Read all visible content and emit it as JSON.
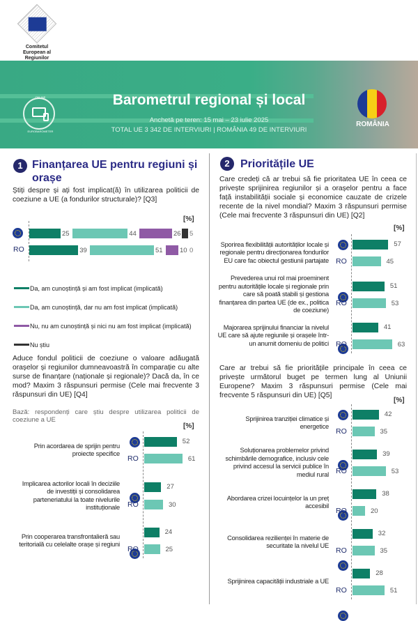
{
  "header": {
    "org_name": "Comitetul European al Regiunilor",
    "badge_top": "ONLINE",
    "badge_bottom": "EUROBAROMETER",
    "title": "Barometrul regional și local",
    "subtitle1": "Anchetă pe teren: 15 mai – 23 iulie 2025",
    "subtitle2": "TOTAL UE 3 342 DE INTERVIURI | ROMÂNIA 49 DE INTERVIURI",
    "country": "ROMÂNIA",
    "flag_colors": [
      "#1d3b95",
      "#f6cf16",
      "#d8202a"
    ]
  },
  "colors": {
    "eu": "#0e7f66",
    "ro": "#6cc7b4",
    "purple": "#8f5aa5",
    "dark": "#333333",
    "title": "#2b2b86"
  },
  "section1": {
    "number": "1",
    "title": "Finanțarea UE pentru regiuni și orașe",
    "q3": {
      "question": "Știți despre și ați fost implicat(ă) în utilizarea politicii de coeziune a UE (a fondurilor structurale)? [Q3]",
      "unit": "[%]",
      "rows": [
        {
          "label": "",
          "icon": "eu-flag-icon",
          "values": [
            25,
            44,
            26,
            5
          ]
        },
        {
          "label": "RO",
          "values": [
            39,
            51,
            10,
            0
          ]
        }
      ],
      "legend": [
        "Da, am cunoștință și am fost implicat (implicată)",
        "Da, am cunoștință, dar nu am fost implicat (implicată)",
        "Nu, nu am cunoștință și nici nu am fost implicat (implicată)",
        "Nu știu"
      ]
    },
    "q4": {
      "question": "Aduce fondul politicii de coeziune o valoare adăugată orașelor și regiunilor dumneavoastră în comparație cu alte surse de finanțare (naționale și regionale)? Dacă da, în ce mod? Maxim 3 răspunsuri permise (Cele mai frecvente 3 răspunsuri din UE) [Q4]",
      "base": "Bază: respondenți care știu despre utilizarea politicii de coeziune a UE",
      "unit": "[%]",
      "ro_label": "RO",
      "items": [
        {
          "label": "Prin acordarea de sprijin pentru proiecte specifice",
          "eu": 52,
          "ro": 61
        },
        {
          "label": "Implicarea actorilor locali în deciziile de investiții și consolidarea parteneriatului la toate nivelurile instituționale",
          "eu": 27,
          "ro": 30
        },
        {
          "label": "Prin cooperarea transfrontalieră sau teritorială cu celelalte orașe și regiuni",
          "eu": 24,
          "ro": 25
        }
      ]
    }
  },
  "section2": {
    "number": "2",
    "title": "Prioritățile UE",
    "q2": {
      "question": "Care credeți că ar trebui să fie prioritatea UE în ceea ce privește sprijinirea regiunilor și a orașelor pentru a face față instabilității sociale și economice cauzate de crizele recente de la nivel mondial? Maxim 3 răspunsuri permise (Cele mai frecvente 3 răspunsuri din UE) [Q2]",
      "unit": "[%]",
      "ro_label": "RO",
      "items": [
        {
          "label": "Sporirea flexibilității autorităților locale și regionale pentru direcționarea fondurilor EU care fac obiectul gestiunii partajate",
          "eu": 57,
          "ro": 45
        },
        {
          "label": "Prevederea unui rol mai proeminent pentru autoritățile locale și regionale prin care să poată stabili și gestiona finanțarea din partea UE (de ex., politica de coeziune)",
          "eu": 51,
          "ro": 53
        },
        {
          "label": "Majorarea sprijinului financiar la nivelul UE care să ajute regiunile și orașele într-un anumit domeniu de politici",
          "eu": 41,
          "ro": 63
        }
      ]
    },
    "q5": {
      "question": "Care ar trebui să fie prioritățile principale în ceea ce privește următorul buget pe termen lung al Uniunii Europene? Maxim 3 răspunsuri permise (Cele mai frecvente 5 răspunsuri din UE) [Q5]",
      "unit": "[%]",
      "ro_label": "RO",
      "items": [
        {
          "label": "Sprijinirea tranziției climatice și energetice",
          "eu": 42,
          "ro": 35
        },
        {
          "label": "Soluționarea problemelor privind schimbările demografice, inclusiv cele privind accesul la servicii publice în mediul rural",
          "eu": 39,
          "ro": 53
        },
        {
          "label": "Abordarea crizei locuințelor la un preț accesibil",
          "eu": 38,
          "ro": 20
        },
        {
          "label": "Consolidarea rezilienței în materie de securitate la nivelul UE",
          "eu": 32,
          "ro": 35
        },
        {
          "label": "Sprijinirea capacității industriale a UE",
          "eu": 28,
          "ro": 51
        }
      ]
    }
  }
}
